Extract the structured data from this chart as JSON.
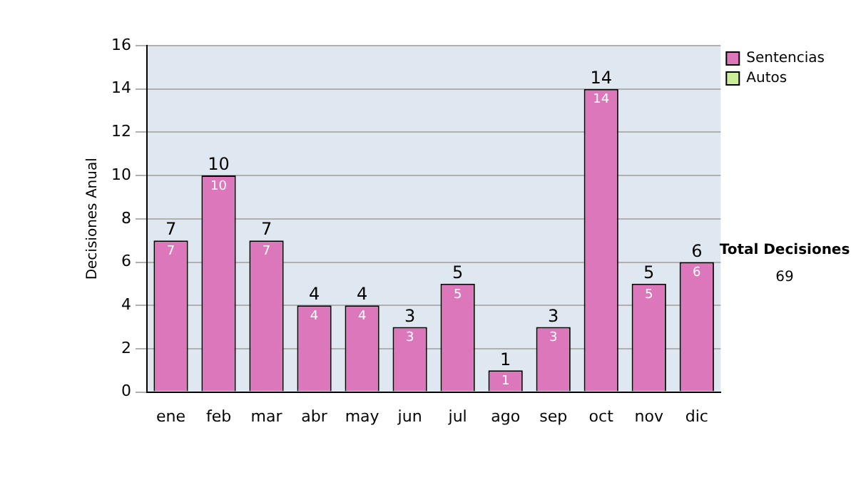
{
  "chart_data": {
    "type": "bar",
    "ylabel": "Decisiones Anual",
    "categories": [
      "ene",
      "feb",
      "mar",
      "abr",
      "may",
      "jun",
      "jul",
      "ago",
      "sep",
      "oct",
      "nov",
      "dic"
    ],
    "series": [
      {
        "name": "Sentencias",
        "color": "#dd77bb",
        "values": [
          7,
          10,
          7,
          4,
          4,
          3,
          5,
          1,
          3,
          14,
          5,
          6
        ],
        "value_labels": [
          "7",
          "10",
          "7",
          "4",
          "4",
          "3",
          "5",
          "1",
          "3",
          "14",
          "5",
          "6"
        ]
      },
      {
        "name": "Autos",
        "color": "#ccee99",
        "values": [
          0,
          0,
          0,
          0,
          0,
          0,
          0,
          0,
          0,
          0,
          0,
          0
        ]
      }
    ],
    "stacked": true,
    "totals": [
      "7",
      "10",
      "7",
      "4",
      "4",
      "3",
      "5",
      "1",
      "3",
      "14",
      "5",
      "6"
    ],
    "ylim": [
      0,
      16
    ],
    "yticks": [
      0,
      2,
      4,
      6,
      8,
      10,
      12,
      14,
      16
    ],
    "grid": "y",
    "legend": "right",
    "annotations": [
      "Total Decisiones",
      "69"
    ]
  }
}
